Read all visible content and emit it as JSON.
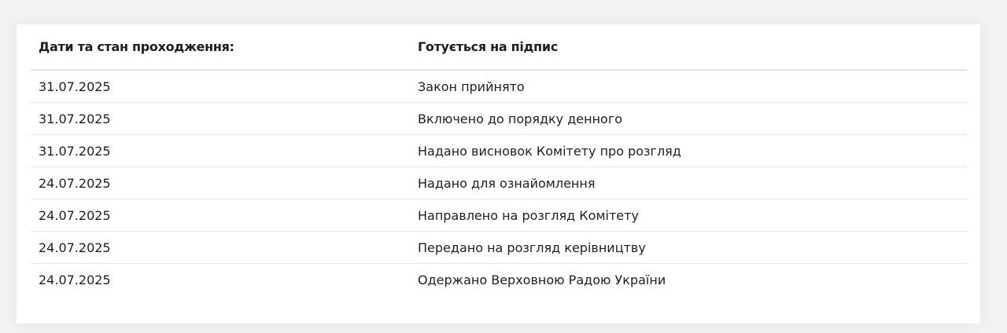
{
  "header": {
    "label": "Дати та стан проходження:",
    "status": "Готується на підпис"
  },
  "rows": [
    {
      "date": "31.07.2025",
      "event": "Закон прийнято"
    },
    {
      "date": "31.07.2025",
      "event": "Включено до порядку денного"
    },
    {
      "date": "31.07.2025",
      "event": "Надано висновок Комітету про розгляд"
    },
    {
      "date": "24.07.2025",
      "event": "Надано для ознайомлення"
    },
    {
      "date": "24.07.2025",
      "event": "Направлено на розгляд Комітету"
    },
    {
      "date": "24.07.2025",
      "event": "Передано на розгляд керівництву"
    },
    {
      "date": "24.07.2025",
      "event": "Одержано Верховною Радою України"
    }
  ]
}
